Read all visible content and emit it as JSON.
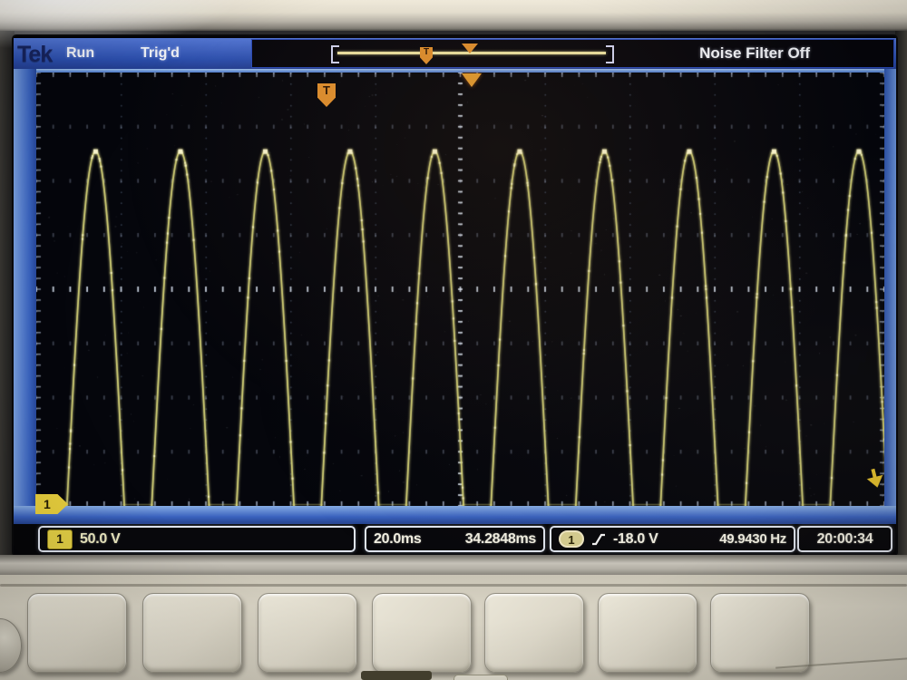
{
  "brand": "Tek",
  "status_bar": {
    "acq_state": "Run",
    "trigger_status": "Trig'd",
    "noise_filter_label": "Noise Filter Off"
  },
  "graticule_markers": {
    "channel1_position_badge": "1",
    "trigger_flag_label": "T",
    "record_view_trigger_label": "T"
  },
  "readouts": {
    "channel1": {
      "badge": "1",
      "scale": "50.0 V"
    },
    "horizontal": {
      "scale": "20.0ms",
      "position": "34.2848ms"
    },
    "trigger": {
      "source_badge": "1",
      "slope": "rising",
      "level": "-18.0 V",
      "frequency": "49.9430 Hz"
    },
    "clock": "20:00:34"
  },
  "colors": {
    "title_bar_blue": "#3a5fc4",
    "graticule_frame_blue": "#4a78cc",
    "channel1_yellow": "#e3cf45",
    "marker_orange": "#df8f2e",
    "trace_yellow": "#d6d478",
    "readout_text": "#f1efe2",
    "screen_black": "#05060c"
  },
  "chart_data": {
    "type": "line",
    "description": "Channel 1 trace: repetitive half-sine voltage pulses rising from the bottom graticule edge, one pulse per mains period (~20 ms)",
    "volts_per_division": 50.0,
    "time_per_division_ms": 20.0,
    "horizontal_divisions": 10,
    "vertical_divisions": 8,
    "pulse_amplitude_divisions": 6.6,
    "pulse_half_width_divisions": 0.34,
    "peak_centers_divisions": [
      0.7,
      1.7,
      2.7,
      3.7,
      4.7,
      5.7,
      6.7,
      7.7,
      8.7,
      9.7
    ],
    "baseline_divisions_from_bottom": 0,
    "measured_frequency_hz": 49.943,
    "trigger_level_volts": -18.0,
    "grid": "dotted",
    "trace_color": "#d6d478"
  }
}
